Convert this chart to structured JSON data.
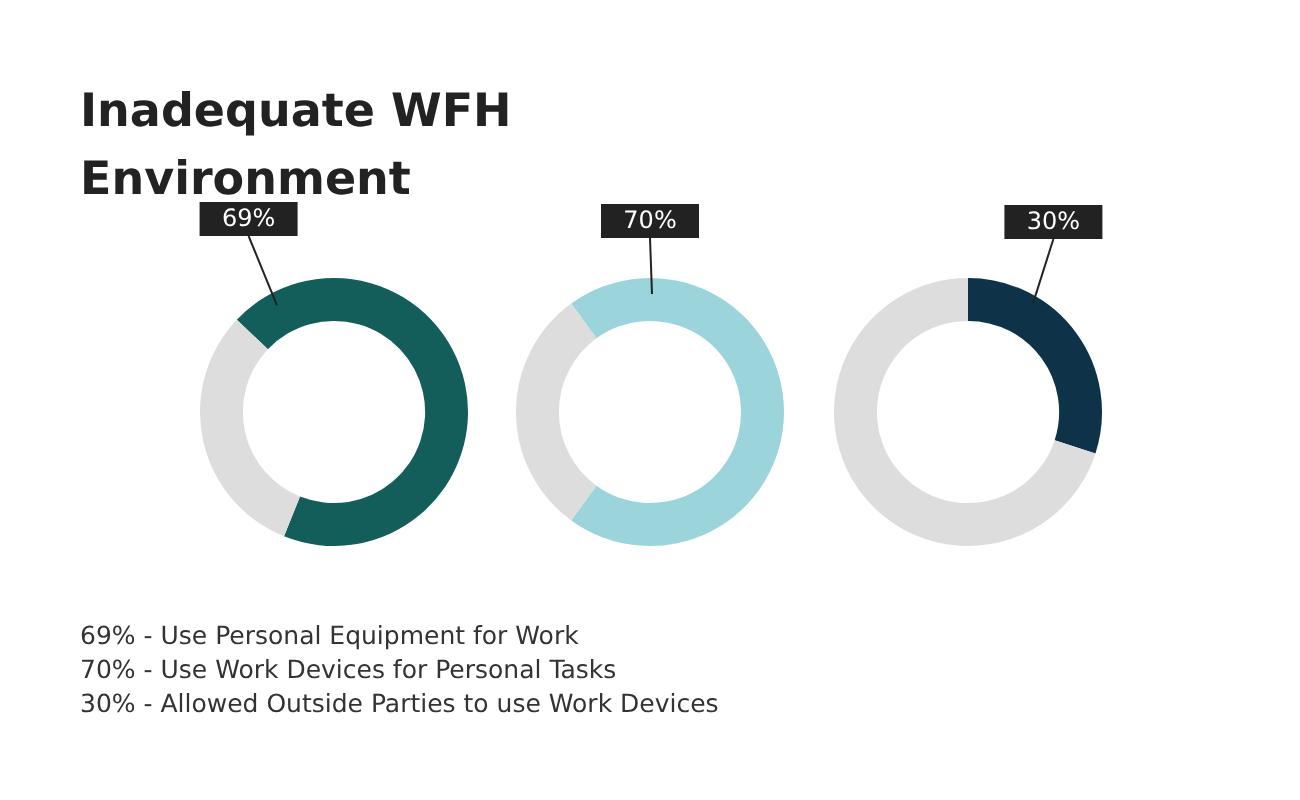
{
  "chart_data": [
    {
      "type": "donut",
      "title": "Inadequate WFH Environment",
      "categories": [
        null,
        null
      ],
      "values": [
        69,
        31
      ],
      "colors": [
        "#135e5b",
        "#dddddd"
      ],
      "value_labels": [
        "69%",
        null
      ]
    },
    {
      "type": "donut",
      "categories": [
        null,
        null
      ],
      "values": [
        70,
        30
      ],
      "colors": [
        "#9bd4db",
        "#dddddd"
      ],
      "value_labels": [
        "70%",
        null
      ]
    },
    {
      "type": "donut",
      "categories": [
        null,
        null
      ],
      "values": [
        30,
        70
      ],
      "colors": [
        "#0e3349",
        "#dddddd"
      ],
      "value_labels": [
        "30%",
        null
      ]
    },
    {
      "type": "other",
      "annotations": [
        "69% - Use Personal Equipment for Work",
        "70% - Use Work Devices for Personal Tasks",
        "30% - Allowed Outside Parties to use Work Devices"
      ]
    }
  ]
}
